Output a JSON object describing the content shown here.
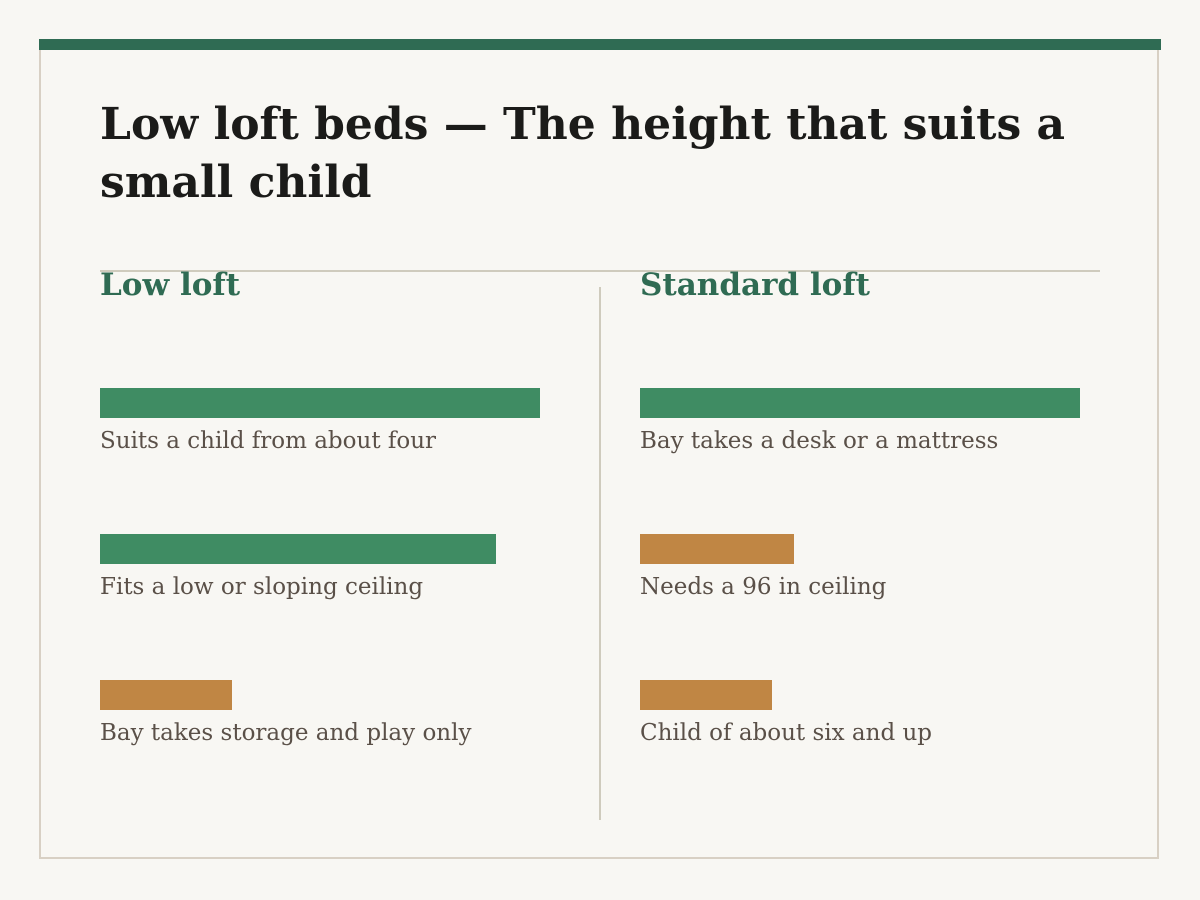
{
  "title": "Low loft beds — The height that suits a small child",
  "colors": {
    "accent": "#2f6b53",
    "strong": "#3f8c63",
    "weak": "#c08644",
    "border": "#d8d0c4",
    "rule": "#cfcbbd",
    "background": "#f8f7f3"
  },
  "columns": [
    {
      "heading": "Low loft",
      "items": [
        {
          "label": "Suits a child from about four",
          "level": 1.0,
          "tone": "strong"
        },
        {
          "label": "Fits a low or sloping ceiling",
          "level": 0.9,
          "tone": "strong"
        },
        {
          "label": "Bay takes storage and play only",
          "level": 0.3,
          "tone": "weak"
        }
      ]
    },
    {
      "heading": "Standard loft",
      "items": [
        {
          "label": "Bay takes a desk or a mattress",
          "level": 1.0,
          "tone": "strong"
        },
        {
          "label": "Needs a 96 in ceiling",
          "level": 0.35,
          "tone": "weak"
        },
        {
          "label": "Child of about six and up",
          "level": 0.3,
          "tone": "weak"
        }
      ]
    }
  ]
}
